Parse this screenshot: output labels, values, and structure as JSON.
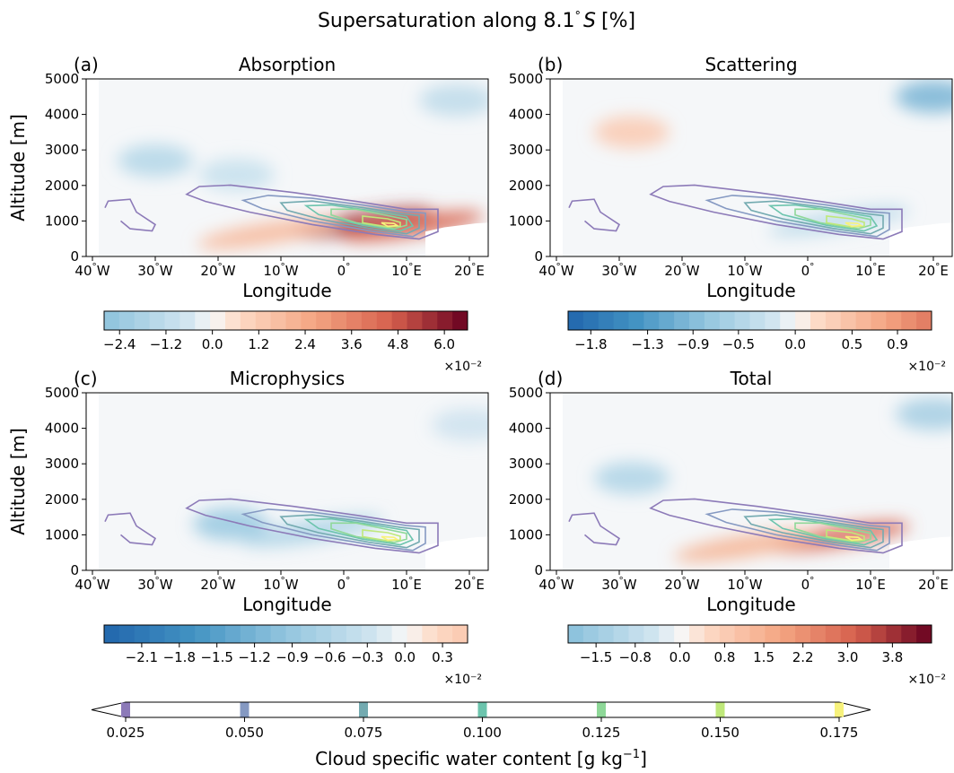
{
  "figure": {
    "title": "Supersaturation along 8.1$^\\circ S$ [%]",
    "title_main": "Supersaturation along 8.1",
    "title_deg": "°",
    "title_S": "S",
    "title_unit": "[%]"
  },
  "chart_data": [
    {
      "panel_label": "(a)",
      "title": "Absorption",
      "type": "heatmap",
      "xlabel": "Longitude",
      "ylabel": "Altitude [m]",
      "xlim": [
        -41,
        23
      ],
      "ylim": [
        0,
        5000
      ],
      "x_ticks": [
        -40,
        -30,
        -20,
        -10,
        0,
        10,
        20
      ],
      "x_tick_labels": [
        "40$^\\circ$W",
        "30$^\\circ$W",
        "20$^\\circ$W",
        "10$^\\circ$W",
        "0$^\\circ$",
        "10$^\\circ$E",
        "20$^\\circ$E"
      ],
      "y_ticks": [
        0,
        1000,
        2000,
        3000,
        4000,
        5000
      ],
      "colorbar": {
        "range": [
          -2.8,
          6.6
        ],
        "ticks": [
          -2.4,
          -1.2,
          0.0,
          1.2,
          2.4,
          3.6,
          4.8,
          6.0
        ],
        "tick_labels": [
          "−2.4",
          "−1.2",
          "0.0",
          "1.2",
          "2.4",
          "3.6",
          "4.8",
          "6.0"
        ],
        "multiplier": "×10⁻²",
        "cmap": "RdBu_r"
      },
      "features": [
        {
          "lon": -30,
          "alt": 2700,
          "value": -1.6
        },
        {
          "lon": -17,
          "alt": 2300,
          "value": -1.0
        },
        {
          "lon": 18,
          "alt": 4400,
          "value": -1.3
        },
        {
          "lon": 3,
          "alt": 950,
          "value": 5.5
        },
        {
          "lon": -12,
          "alt": 650,
          "value": 2.0
        },
        {
          "lon": 11,
          "alt": 850,
          "value": 4.5
        }
      ]
    },
    {
      "panel_label": "(b)",
      "title": "Scattering",
      "type": "heatmap",
      "xlabel": "Longitude",
      "ylabel": "",
      "xlim": [
        -41,
        23
      ],
      "ylim": [
        0,
        5000
      ],
      "x_ticks": [
        -40,
        -30,
        -20,
        -10,
        0,
        10,
        20
      ],
      "x_tick_labels": [
        "40$^\\circ$W",
        "30$^\\circ$W",
        "20$^\\circ$W",
        "10$^\\circ$W",
        "0$^\\circ$",
        "10$^\\circ$E",
        "20$^\\circ$E"
      ],
      "y_ticks": [
        0,
        1000,
        2000,
        3000,
        4000,
        5000
      ],
      "colorbar": {
        "range": [
          -2.0,
          1.2
        ],
        "ticks": [
          -1.8,
          -1.3,
          -0.9,
          -0.5,
          0.0,
          0.5,
          0.9
        ],
        "tick_labels": [
          "−1.8",
          "−1.3",
          "−0.9",
          "−0.5",
          "0.0",
          "0.5",
          "0.9"
        ],
        "multiplier": "×10⁻²",
        "cmap": "RdBu_r"
      },
      "features": [
        {
          "lon": 20,
          "alt": 4500,
          "value": -1.0
        },
        {
          "lon": -28,
          "alt": 3500,
          "value": 0.4
        },
        {
          "lon": 5,
          "alt": 1000,
          "value": -0.4
        }
      ]
    },
    {
      "panel_label": "(c)",
      "title": "Microphysics",
      "type": "heatmap",
      "xlabel": "Longitude",
      "ylabel": "Altitude [m]",
      "xlim": [
        -41,
        23
      ],
      "ylim": [
        0,
        5000
      ],
      "x_ticks": [
        -40,
        -30,
        -20,
        -10,
        0,
        10,
        20
      ],
      "x_tick_labels": [
        "40$^\\circ$W",
        "30$^\\circ$W",
        "20$^\\circ$W",
        "10$^\\circ$W",
        "0$^\\circ$",
        "10$^\\circ$E",
        "20$^\\circ$E"
      ],
      "y_ticks": [
        0,
        1000,
        2000,
        3000,
        4000,
        5000
      ],
      "colorbar": {
        "range": [
          -2.4,
          0.5
        ],
        "ticks": [
          -2.1,
          -1.8,
          -1.5,
          -1.2,
          -0.9,
          -0.6,
          -0.3,
          0.0,
          0.3
        ],
        "tick_labels": [
          "−2.1",
          "−1.8",
          "−1.5",
          "−1.2",
          "−0.9",
          "−0.6",
          "−0.3",
          "0.0",
          "0.3"
        ],
        "multiplier": "×10⁻²",
        "cmap": "RdBu_r"
      },
      "features": [
        {
          "lon": -18,
          "alt": 1300,
          "value": -0.9
        },
        {
          "lon": -5,
          "alt": 1100,
          "value": -0.7
        },
        {
          "lon": 20,
          "alt": 4100,
          "value": -0.3
        }
      ]
    },
    {
      "panel_label": "(d)",
      "title": "Total",
      "type": "heatmap",
      "xlabel": "Longitude",
      "ylabel": "",
      "xlim": [
        -41,
        23
      ],
      "ylim": [
        0,
        5000
      ],
      "x_ticks": [
        -40,
        -30,
        -20,
        -10,
        0,
        10,
        20
      ],
      "x_tick_labels": [
        "40$^\\circ$W",
        "30$^\\circ$W",
        "20$^\\circ$W",
        "10$^\\circ$W",
        "0$^\\circ$",
        "10$^\\circ$E",
        "20$^\\circ$E"
      ],
      "y_ticks": [
        0,
        1000,
        2000,
        3000,
        4000,
        5000
      ],
      "colorbar": {
        "range": [
          -2.0,
          4.5
        ],
        "ticks": [
          -1.5,
          -0.8,
          0.0,
          0.8,
          1.5,
          2.2,
          3.0,
          3.8
        ],
        "tick_labels": [
          "−1.5",
          "−0.8",
          "0.0",
          "0.8",
          "1.5",
          "2.2",
          "3.0",
          "3.8"
        ],
        "multiplier": "×10⁻²",
        "cmap": "RdBu_r"
      },
      "features": [
        {
          "lon": -28,
          "alt": 2600,
          "value": -1.2
        },
        {
          "lon": 20,
          "alt": 4400,
          "value": -1.4
        },
        {
          "lon": 5,
          "alt": 950,
          "value": 3.0
        },
        {
          "lon": -10,
          "alt": 680,
          "value": 1.5
        }
      ]
    }
  ],
  "contours": {
    "variable": "Cloud specific water content",
    "levels": [
      0.025,
      0.05,
      0.075,
      0.1,
      0.125,
      0.15,
      0.175
    ],
    "colors": [
      "#8c7ab8",
      "#8599c2",
      "#73aab0",
      "#6cc4ad",
      "#8ed898",
      "#bfe87a",
      "#f7f27c"
    ]
  },
  "contour_colorbar": {
    "ticks": [
      0.025,
      0.05,
      0.075,
      0.1,
      0.125,
      0.15,
      0.175
    ],
    "tick_labels": [
      "0.025",
      "0.050",
      "0.075",
      "0.100",
      "0.125",
      "0.150",
      "0.175"
    ],
    "label": "Cloud specific water content [g kg$^{-1}$]",
    "label_main": "Cloud specific water content [g kg",
    "label_sup": "−1",
    "label_end": "]",
    "extend": "both"
  }
}
